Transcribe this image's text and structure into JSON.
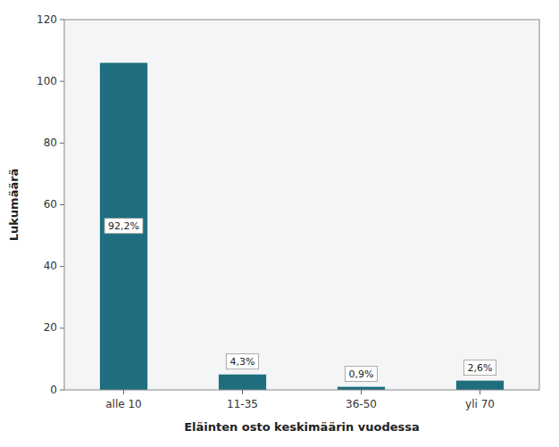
{
  "chart_data": {
    "type": "bar",
    "categories": [
      "alle 10",
      "11-35",
      "36-50",
      "yli 70"
    ],
    "values": [
      106,
      5,
      1,
      3
    ],
    "value_labels": [
      "92,2%",
      "4,3%",
      "0,9%",
      "2,6%"
    ],
    "data_labels": true,
    "color": "#1e6e7e",
    "xlabel": "Eläinten osto keskimäärin vuodessa",
    "ylabel": "Lukumäärä",
    "ylim": [
      0,
      120
    ],
    "yticks": [
      0,
      20,
      40,
      60,
      80,
      100,
      120
    ],
    "grid": false
  }
}
